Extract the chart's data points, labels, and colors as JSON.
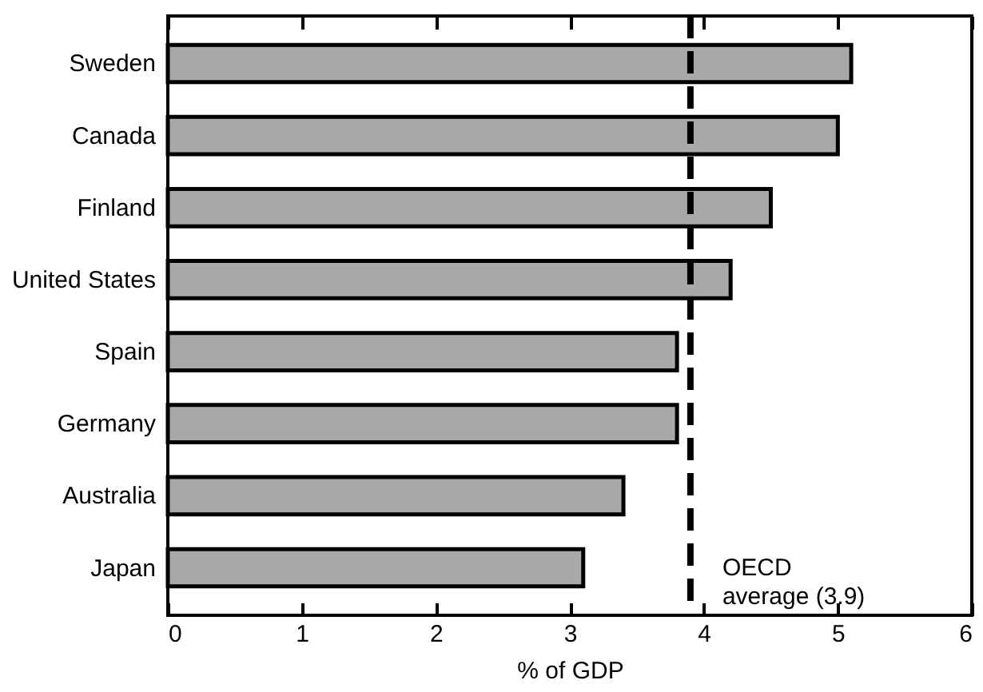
{
  "chart_data": {
    "type": "bar",
    "orientation": "horizontal",
    "xlabel": "% of GDP",
    "categories": [
      "Sweden",
      "Canada",
      "Finland",
      "United States",
      "Spain",
      "Germany",
      "Australia",
      "Japan"
    ],
    "values": [
      5.1,
      5.0,
      4.5,
      4.2,
      3.8,
      3.8,
      3.4,
      3.1
    ],
    "color": "#a8a8a8",
    "xlim": [
      0,
      6
    ],
    "xticks": [
      0,
      1,
      2,
      3,
      4,
      5,
      6
    ],
    "ref_lines": [
      {
        "axis": "x",
        "value": 3.9,
        "label": "OECD\naverage (3.9)",
        "line_style": "dashed",
        "color": "#000000"
      }
    ],
    "grid": false
  }
}
